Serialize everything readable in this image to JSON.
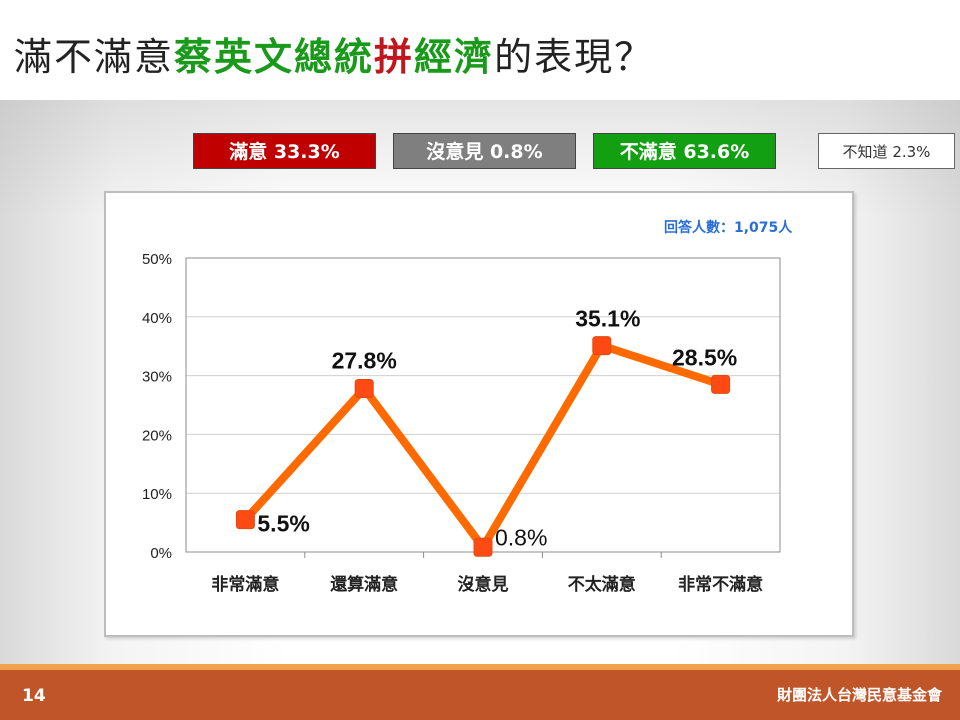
{
  "title": {
    "part1": "滿不滿意",
    "part2": "蔡英文總統",
    "part3": "拼",
    "part4": "經濟",
    "part5": "的表現？"
  },
  "summary": {
    "satisfied": "滿意 33.3%",
    "no_opinion": "沒意見 0.8%",
    "dissatisfied": "不滿意 63.6%",
    "dont_know": "不知道 2.3%"
  },
  "respondents": "回答人數：1,075人",
  "footer": {
    "page_number": "14",
    "organization": "財團法人台灣民意基金會"
  },
  "colors": {
    "line": "#ff6a00",
    "marker": "#ff4a14",
    "satisfied": "#c00000",
    "no_opinion": "#7f7f7f",
    "dissatisfied": "#12a012"
  },
  "chart_data": {
    "type": "line",
    "categories": [
      "非常滿意",
      "還算滿意",
      "沒意見",
      "不太滿意",
      "非常不滿意"
    ],
    "values": [
      5.5,
      27.8,
      0.8,
      35.1,
      28.5
    ],
    "data_labels": [
      "5.5%",
      "27.8%",
      "0.8%",
      "35.1%",
      "28.5%"
    ],
    "y_ticks": [
      "0%",
      "10%",
      "20%",
      "30%",
      "40%",
      "50%"
    ],
    "ylim": [
      0,
      50
    ],
    "grid": true,
    "legend": "none"
  }
}
